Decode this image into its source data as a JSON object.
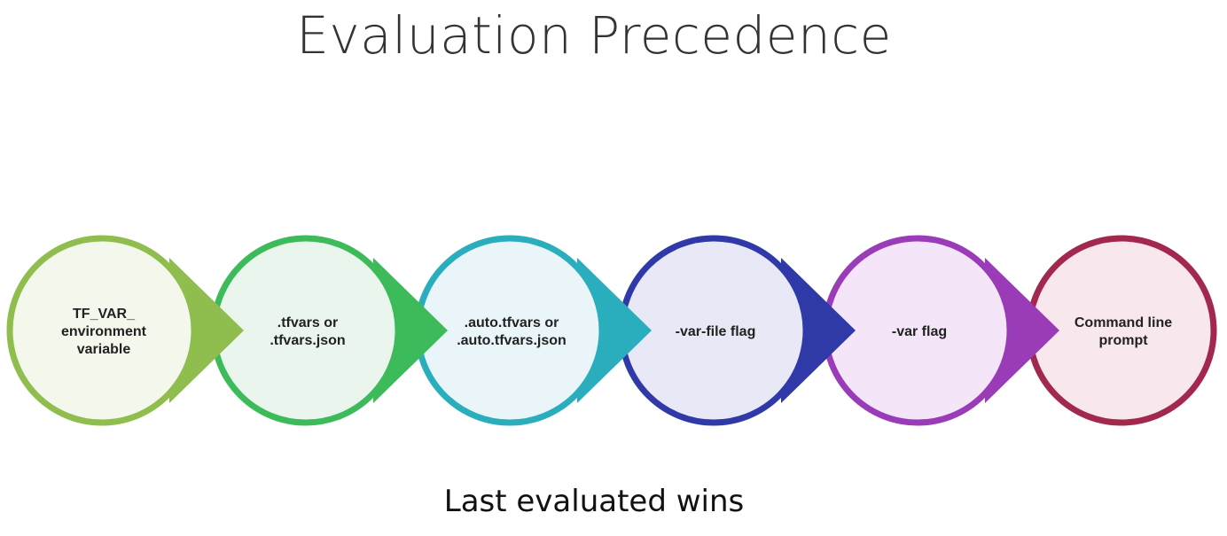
{
  "title": "Evaluation Precedence",
  "footer": "Last evaluated wins",
  "steps": [
    {
      "lines": [
        "TF_VAR_",
        "environment",
        "variable"
      ],
      "stroke": "#8fbd4e",
      "fill": "#f4f7ec"
    },
    {
      "lines": [
        ".tfvars or",
        ".tfvars.json"
      ],
      "stroke": "#3dbb5b",
      "fill": "#eaf6ed"
    },
    {
      "lines": [
        ".auto.tfvars or",
        ".auto.tfvars.json"
      ],
      "stroke": "#2aaebe",
      "fill": "#e9f5f9"
    },
    {
      "lines": [
        "-var-file flag"
      ],
      "stroke": "#2f3aa8",
      "fill": "#e8e8f6"
    },
    {
      "lines": [
        "-var flag"
      ],
      "stroke": "#9a3cb8",
      "fill": "#f4e6f8"
    },
    {
      "lines": [
        "Command line",
        "prompt"
      ],
      "stroke": "#a3284e",
      "fill": "#f8e7ec"
    }
  ]
}
